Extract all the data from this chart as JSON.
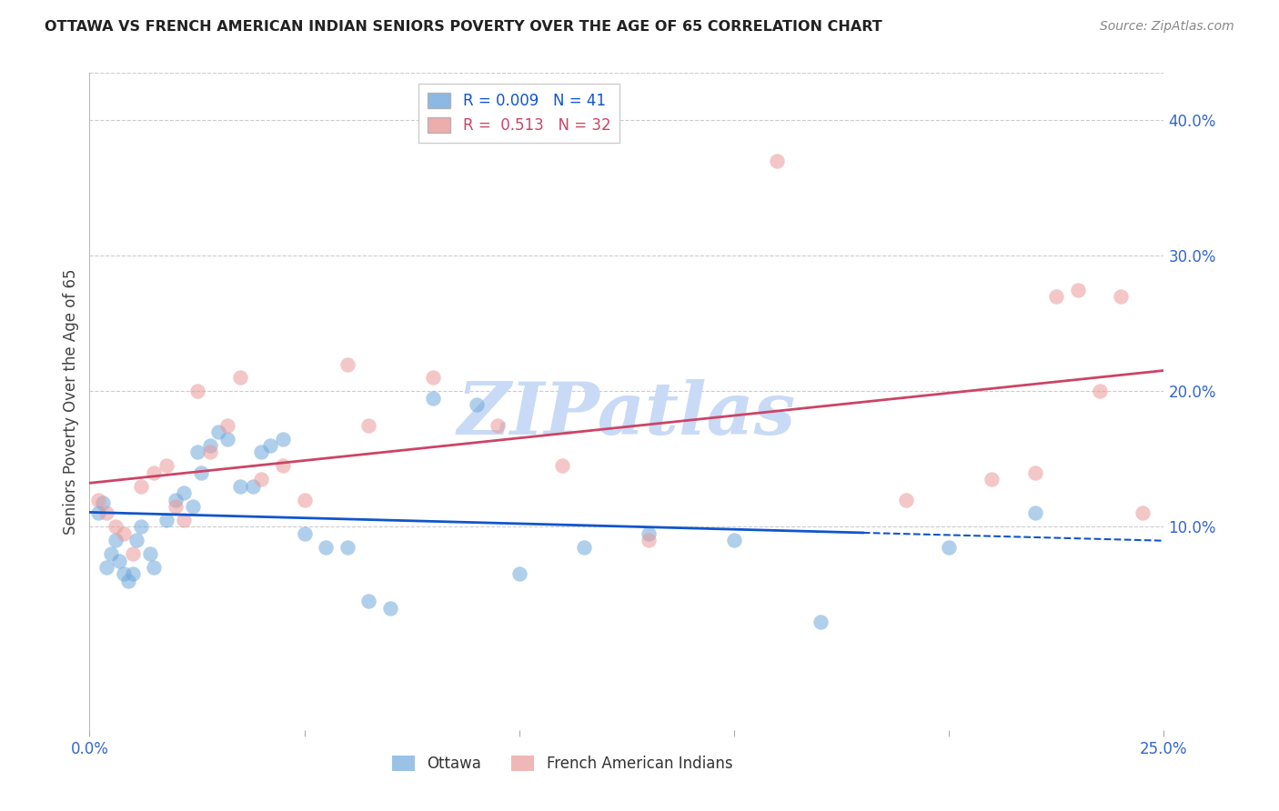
{
  "title": "OTTAWA VS FRENCH AMERICAN INDIAN SENIORS POVERTY OVER THE AGE OF 65 CORRELATION CHART",
  "source": "Source: ZipAtlas.com",
  "ylabel": "Seniors Poverty Over the Age of 65",
  "xlabel_ottawa": "Ottawa",
  "xlabel_fai": "French American Indians",
  "xlim": [
    0.0,
    0.25
  ],
  "ylim": [
    -0.05,
    0.435
  ],
  "yticks_right": [
    0.1,
    0.2,
    0.3,
    0.4
  ],
  "ytick_right_labels": [
    "10.0%",
    "20.0%",
    "30.0%",
    "40.0%"
  ],
  "r_ottawa": 0.009,
  "n_ottawa": 41,
  "r_fai": 0.513,
  "n_fai": 32,
  "color_ottawa": "#6fa8dc",
  "color_fai": "#ea9999",
  "color_ottawa_line": "#1155cc",
  "color_fai_line": "#cc4466",
  "watermark_color": "#c8daf5",
  "background_color": "#ffffff",
  "grid_color": "#cccccc",
  "ottawa_x": [
    0.002,
    0.003,
    0.004,
    0.005,
    0.006,
    0.007,
    0.008,
    0.009,
    0.01,
    0.011,
    0.012,
    0.014,
    0.015,
    0.018,
    0.02,
    0.022,
    0.024,
    0.025,
    0.026,
    0.028,
    0.03,
    0.032,
    0.035,
    0.038,
    0.04,
    0.042,
    0.045,
    0.05,
    0.055,
    0.06,
    0.065,
    0.07,
    0.08,
    0.09,
    0.1,
    0.115,
    0.13,
    0.15,
    0.17,
    0.2,
    0.22
  ],
  "ottawa_y": [
    0.11,
    0.118,
    0.07,
    0.08,
    0.09,
    0.075,
    0.065,
    0.06,
    0.065,
    0.09,
    0.1,
    0.08,
    0.07,
    0.105,
    0.12,
    0.125,
    0.115,
    0.155,
    0.14,
    0.16,
    0.17,
    0.165,
    0.13,
    0.13,
    0.155,
    0.16,
    0.165,
    0.095,
    0.085,
    0.085,
    0.045,
    0.04,
    0.195,
    0.19,
    0.065,
    0.085,
    0.095,
    0.09,
    0.03,
    0.085,
    0.11
  ],
  "fai_x": [
    0.002,
    0.004,
    0.006,
    0.008,
    0.01,
    0.012,
    0.015,
    0.018,
    0.02,
    0.022,
    0.025,
    0.028,
    0.032,
    0.035,
    0.04,
    0.045,
    0.05,
    0.06,
    0.065,
    0.08,
    0.095,
    0.11,
    0.13,
    0.16,
    0.19,
    0.21,
    0.22,
    0.225,
    0.23,
    0.235,
    0.24,
    0.245
  ],
  "fai_y": [
    0.12,
    0.11,
    0.1,
    0.095,
    0.08,
    0.13,
    0.14,
    0.145,
    0.115,
    0.105,
    0.2,
    0.155,
    0.175,
    0.21,
    0.135,
    0.145,
    0.12,
    0.22,
    0.175,
    0.21,
    0.175,
    0.145,
    0.09,
    0.37,
    0.12,
    0.135,
    0.14,
    0.27,
    0.275,
    0.2,
    0.27,
    0.11
  ],
  "ottawa_line_solid_end": 0.18,
  "fai_line_start": 0.0,
  "fai_line_end": 0.25
}
